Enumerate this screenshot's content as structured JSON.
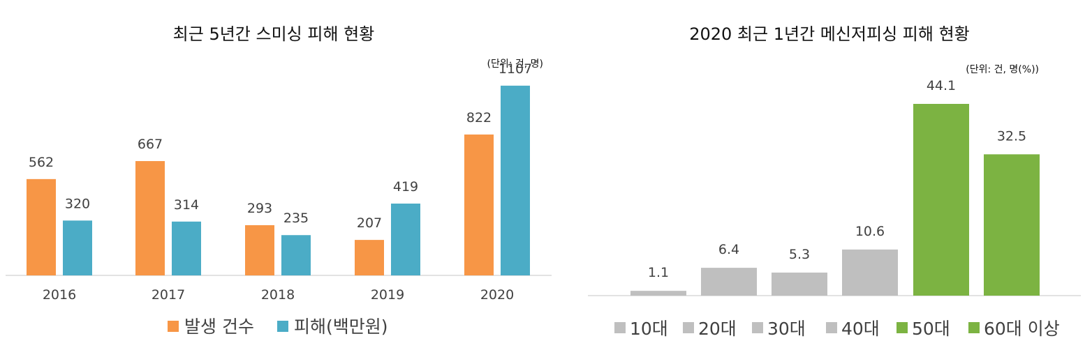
{
  "chart_data": [
    {
      "type": "bar",
      "title": "최근 5년간 스미싱 피해 현황",
      "unit_note": "(단위: 건, 명)",
      "categories": [
        "2016",
        "2017",
        "2018",
        "2019",
        "2020"
      ],
      "series": [
        {
          "name": "발생 건수",
          "color": "#F79646",
          "values": [
            562,
            667,
            293,
            207,
            822
          ]
        },
        {
          "name": "피해(백만원)",
          "color": "#4BACC6",
          "values": [
            320,
            314,
            235,
            419,
            1107
          ]
        }
      ],
      "ylim": [
        0,
        1200
      ],
      "grid": false,
      "legend_position": "bottom"
    },
    {
      "type": "bar",
      "title": "2020 최근 1년간 메신저피싱 피해 현황",
      "unit_note": "(단위: 건, 명(%))",
      "categories": [
        "10대",
        "20대",
        "30대",
        "40대",
        "50대",
        "60대 이상"
      ],
      "values": [
        1.1,
        6.4,
        5.3,
        10.6,
        44.1,
        32.5
      ],
      "colors": [
        "#BFBFBF",
        "#BFBFBF",
        "#BFBFBF",
        "#BFBFBF",
        "#7CB342",
        "#7CB342"
      ],
      "ylim": [
        0,
        50
      ],
      "grid": false,
      "legend_position": "bottom"
    }
  ]
}
